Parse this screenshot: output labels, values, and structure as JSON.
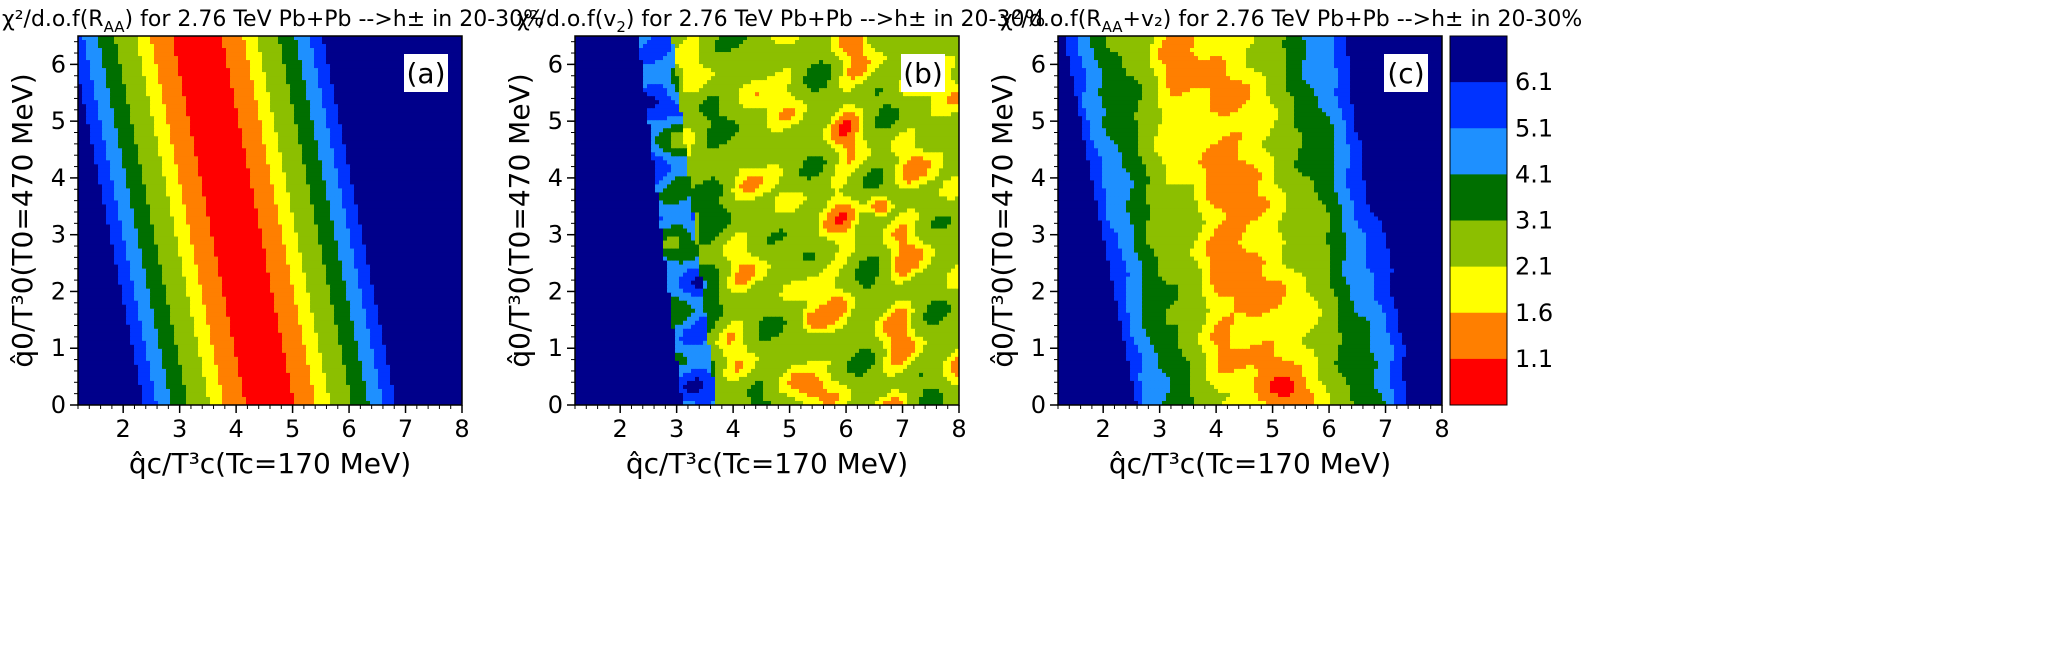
{
  "colors": {
    "levels": [
      "#ff0000",
      "#ff7f00",
      "#ffff00",
      "#8cbf00",
      "#006f00",
      "#1e90ff",
      "#0033ff",
      "#00008b"
    ],
    "contour_line": "#222222"
  },
  "colorbar": {
    "labels": [
      "1.1",
      "1.6",
      "2.1",
      "3.1",
      "4.1",
      "5.1",
      "6.1"
    ],
    "thresholds": [
      1.1,
      1.6,
      2.1,
      3.1,
      4.1,
      5.1,
      6.1
    ]
  },
  "chart_data": [
    {
      "type": "heatmap",
      "title_text": "χ²/d.o.f(R",
      "title_sub": "AA",
      "title_rest": ") for 2.76 TeV Pb+Pb -->h± in 20-30%",
      "panel_label": "(a)",
      "xlabel": "q̂c/T³c(Tc=170 MeV)",
      "ylabel": "q̂0/T³0(T0=470 MeV)",
      "xlim": [
        1.2,
        8
      ],
      "ylim": [
        0,
        6.5
      ],
      "xticks": [
        2,
        3,
        4,
        5,
        6,
        7,
        8
      ],
      "yticks": [
        0,
        1,
        2,
        3,
        4,
        5,
        6
      ],
      "model": {
        "kind": "band",
        "center_x0": 4.6,
        "slope": -0.2,
        "min": 0.9,
        "half_width": 1.05,
        "noise": 0.0,
        "islands": []
      }
    },
    {
      "type": "heatmap",
      "title_text": "χ²/d.o.f(v",
      "title_sub": "2",
      "title_rest": ") for 2.76 TeV Pb+Pb -->h± in 20-30%",
      "panel_label": "(b)",
      "xlabel": "q̂c/T³c(Tc=170 MeV)",
      "ylabel": "q̂0/T³0(T0=470 MeV)",
      "xlim": [
        1.2,
        8
      ],
      "ylim": [
        0,
        6.5
      ],
      "xticks": [
        2,
        3,
        4,
        5,
        6,
        7,
        8
      ],
      "yticks": [
        0,
        1,
        2,
        3,
        4,
        5,
        6
      ],
      "model": {
        "kind": "wall",
        "edge_x0": 3.7,
        "slope": -0.12,
        "plateau": 2.3,
        "noise": 0.9,
        "islands": [
          {
            "x": 6.6,
            "y": 3.5,
            "v": 1.2
          },
          {
            "x": 5.5,
            "y": 1.5,
            "v": 1.2
          },
          {
            "x": 5.4,
            "y": 0.3,
            "v": 1.3
          }
        ]
      }
    },
    {
      "type": "heatmap",
      "title_text": "χ²/d.o.f(R",
      "title_sub": "AA",
      "title_rest": "+v₂) for 2.76 TeV Pb+Pb -->h± in 20-30%",
      "panel_label": "(c)",
      "xlabel": "q̂c/T³c(Tc=170 MeV)",
      "ylabel": "q̂0/T³0(T0=470 MeV)",
      "xlim": [
        1.2,
        8
      ],
      "ylim": [
        0,
        6.5
      ],
      "xticks": [
        2,
        3,
        4,
        5,
        6,
        7,
        8
      ],
      "yticks": [
        0,
        1,
        2,
        3,
        4,
        5,
        6
      ],
      "model": {
        "kind": "band",
        "center_x0": 5.0,
        "slope": -0.2,
        "min": 1.5,
        "half_width": 1.25,
        "noise": 0.35,
        "islands": [
          {
            "x": 5.2,
            "y": 0.3,
            "v": 0.9
          },
          {
            "x": 4.7,
            "y": 1.8,
            "v": 1.3
          },
          {
            "x": 4.0,
            "y": 3.8,
            "v": 1.4
          }
        ]
      }
    }
  ]
}
